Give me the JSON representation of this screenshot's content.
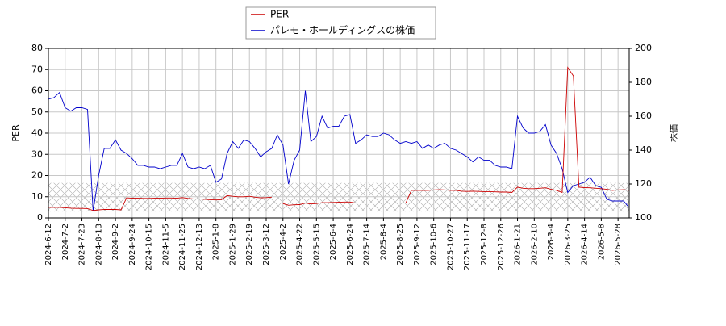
{
  "chart_data": {
    "type": "line",
    "ylabel": "PER",
    "y2label": "株価",
    "categories": [
      "2024-6-12",
      null,
      null,
      "2024-7-2",
      null,
      null,
      "2024-7-23",
      null,
      null,
      "2024-8-13",
      null,
      null,
      "2024-9-2",
      null,
      null,
      "2024-9-24",
      null,
      null,
      "2024-10-15",
      null,
      null,
      "2024-11-5",
      null,
      null,
      "2024-11-25",
      null,
      null,
      "2024-12-13",
      null,
      null,
      "2025-1-8",
      null,
      null,
      "2025-1-29",
      null,
      null,
      "2025-2-19",
      null,
      null,
      "2025-3-12",
      null,
      null,
      "2025-4-2",
      null,
      null,
      "2025-4-22",
      null,
      null,
      "2025-5-15",
      null,
      null,
      "2025-6-4",
      null,
      null,
      "2025-6-24",
      null,
      null,
      "2025-7-14",
      null,
      null,
      "2025-8-4",
      null,
      null,
      "2025-8-25",
      null,
      null,
      "2025-9-12",
      null,
      null,
      "2025-10-6",
      null,
      null,
      "2025-10-27",
      null,
      null,
      "2025-11-17",
      null,
      null,
      "2025-12-8",
      null,
      null,
      "2025-12-26",
      null,
      null,
      "2026-1-21",
      null,
      null,
      "2026-2-10",
      null,
      null,
      "2026-3-4",
      null,
      null,
      "2026-3-25",
      null,
      null,
      "2026-4-14",
      null,
      null,
      "2026-5-8",
      null,
      null,
      "2026-5-28",
      null,
      null
    ],
    "series": [
      {
        "name": "PER",
        "color": "#cc0000",
        "values": [
          5,
          5,
          5,
          4.8,
          4.6,
          4.5,
          4.5,
          4.4,
          3.5,
          3.8,
          4,
          4,
          4,
          3.8,
          9.5,
          9.3,
          9.3,
          9.2,
          9.2,
          9.3,
          9.3,
          9.4,
          9.4,
          9.3,
          9.6,
          9.2,
          9,
          9,
          8.8,
          8.6,
          8.5,
          8.6,
          10.5,
          10.2,
          10,
          10,
          10.2,
          9.8,
          9.5,
          9.6,
          9.8,
          null,
          6.8,
          6,
          6.2,
          6.3,
          7,
          6.6,
          6.8,
          7.2,
          7.2,
          7.3,
          7.4,
          7.5,
          7.5,
          7,
          7,
          7,
          7,
          7,
          7,
          7,
          7,
          7,
          7,
          13,
          13,
          13,
          13,
          13.2,
          13.3,
          13.2,
          13,
          13,
          12.6,
          12.5,
          12.6,
          12.5,
          12.4,
          12.4,
          12.3,
          12.2,
          12.2,
          12,
          14.5,
          14,
          13.8,
          13.8,
          14,
          14.2,
          13.5,
          13,
          12,
          71,
          67,
          14.5,
          14.3,
          14.2,
          14,
          13.8,
          13.5,
          13,
          13.2,
          13.3,
          13
        ]
      },
      {
        "name": "パレモ・ホールディングスの株価",
        "color": "#0000cc",
        "axis": "y2",
        "values": [
          170,
          171,
          174,
          165,
          163,
          165,
          165,
          164,
          104,
          125,
          141,
          141,
          146,
          140,
          138,
          135,
          131,
          131,
          130,
          130,
          129,
          130,
          131,
          131,
          138,
          130,
          129,
          130,
          129,
          131,
          121,
          123,
          138,
          145,
          141,
          146,
          145,
          141,
          136,
          139,
          141,
          149,
          143,
          120,
          134,
          140,
          175,
          145,
          148,
          160,
          153,
          154,
          154,
          160,
          161,
          144,
          146,
          149,
          148,
          148,
          150,
          149,
          146,
          144,
          145,
          144,
          145,
          141,
          143,
          141,
          143,
          144,
          141,
          140,
          138,
          136,
          133,
          136,
          134,
          134,
          131,
          130,
          130,
          129,
          160,
          153,
          150,
          150,
          151,
          155,
          143,
          138,
          129,
          115,
          119,
          120,
          121,
          124,
          119,
          118,
          111,
          110,
          110,
          110,
          106
        ]
      }
    ],
    "ylim": [
      0,
      80
    ],
    "yticks": [
      0,
      10,
      20,
      30,
      40,
      50,
      60,
      70,
      80
    ],
    "y2lim": [
      100,
      200
    ],
    "y2ticks": [
      100,
      120,
      140,
      160,
      180,
      200
    ],
    "shaded_range": [
      3,
      16.5
    ],
    "grid": true,
    "legend": "top"
  }
}
